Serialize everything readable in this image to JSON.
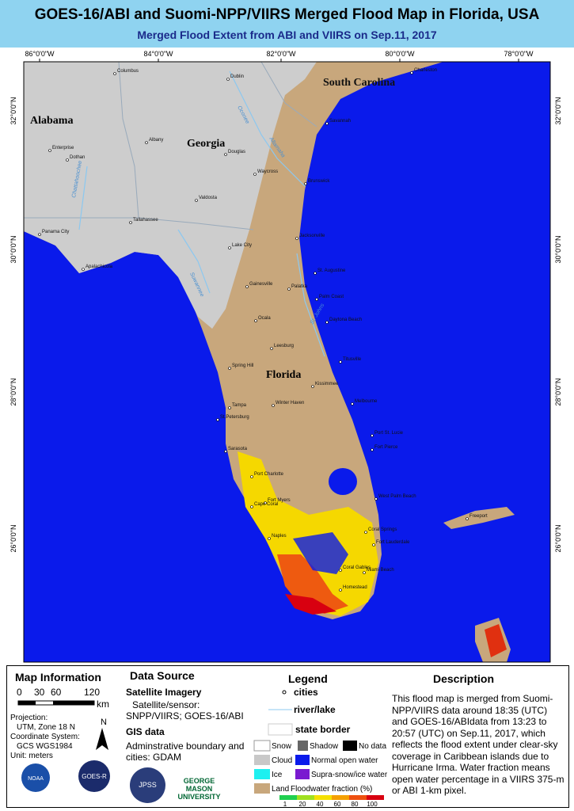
{
  "header": {
    "title": "GOES-16/ABI and Suomi-NPP/VIIRS Merged Flood Map in Florida, USA",
    "subtitle": "Merged Flood Extent from ABI and VIIRS on Sep.11, 2017"
  },
  "map": {
    "lon_labels": [
      "86°0'0\"W",
      "84°0'0\"W",
      "82°0'0\"W",
      "80°0'0\"W",
      "78°0'0\"W"
    ],
    "lat_labels": [
      "32°0'0\"N",
      "30°0'0\"N",
      "28°0'0\"N",
      "26°0'0\"N"
    ],
    "states": [
      "South Carolina",
      "Alabama",
      "Georgia",
      "Florida"
    ],
    "cities": [
      "Columbus",
      "Dublin",
      "Charleston",
      "Savannah",
      "Enterprise",
      "Albany",
      "Dothan",
      "Douglas",
      "Waycross",
      "Brunswick",
      "Valdosta",
      "Tallahassee",
      "Panama City",
      "Apalachicola",
      "Lake City",
      "Jacksonville",
      "St. Augustine",
      "Gainesville",
      "Palatka",
      "Palm Coast",
      "Ocala",
      "Daytona Beach",
      "Leesburg",
      "Spring Hill",
      "Titusville",
      "Kissimmee",
      "Tampa",
      "Winter Haven",
      "Melbourne",
      "St.Petersburg",
      "Sarasota",
      "Port St. Lucie",
      "Fort Pierce",
      "Port Charlotte",
      "West Palm Beach",
      "Fort Myers",
      "Cape Coral",
      "Naples",
      "Coral Springs",
      "Fort Lauderdale",
      "Coral Gables",
      "Miami Beach",
      "Homestead",
      "Freeport"
    ],
    "rivers": [
      "Oconee",
      "Altamaha",
      "Chattahoochee",
      "Suwannee",
      "St. Johns"
    ]
  },
  "info": {
    "heading": "Map Information",
    "scale": [
      "0",
      "30",
      "60",
      "120"
    ],
    "scale_unit": "km",
    "north": "N",
    "projection_label": "Projection:",
    "projection": "UTM, Zone 18 N",
    "coord_label": "Coordinate System:",
    "coord": "GCS WGS1984",
    "unit": "Unit: meters",
    "logos": [
      "NOAA",
      "GOES-R",
      "JPSS",
      "GEORGE MASON UNIVERSITY"
    ]
  },
  "source": {
    "heading": "Data Source",
    "sat_heading": "Satellite Imagery",
    "sat_label": "Satellite/sensor:",
    "sat": "SNPP/VIIRS; GOES-16/ABI",
    "gis_heading": "GIS data",
    "gis": "Adminstrative boundary and cities: GDAM"
  },
  "legend": {
    "heading": "Legend",
    "cities": "cities",
    "river": "river/lake",
    "border": "state border",
    "snow": "Snow",
    "shadow": "Shadow",
    "nodata": "No data",
    "cloud": "Cloud",
    "water": "Normal open water",
    "ice": "Ice",
    "supra": "Supra-snow/ice water",
    "land": "Land",
    "flood": "Floodwater fraction (%)",
    "flood_ticks": [
      "1",
      "20",
      "40",
      "60",
      "80",
      "100"
    ]
  },
  "description": {
    "heading": "Description",
    "text": "This flood map is merged from Suomi-NPP/VIIRS data around 18:35 (UTC) and GOES-16/ABIdata from 13:23 to 20:57 (UTC) on Sep.11, 2017, which reflects the flood extent under clear-sky coverage in Caribbean islands due to Hurricane Irma. Water fraction means open water percentage in a VIIRS 375-m or ABI 1-km pixel."
  }
}
